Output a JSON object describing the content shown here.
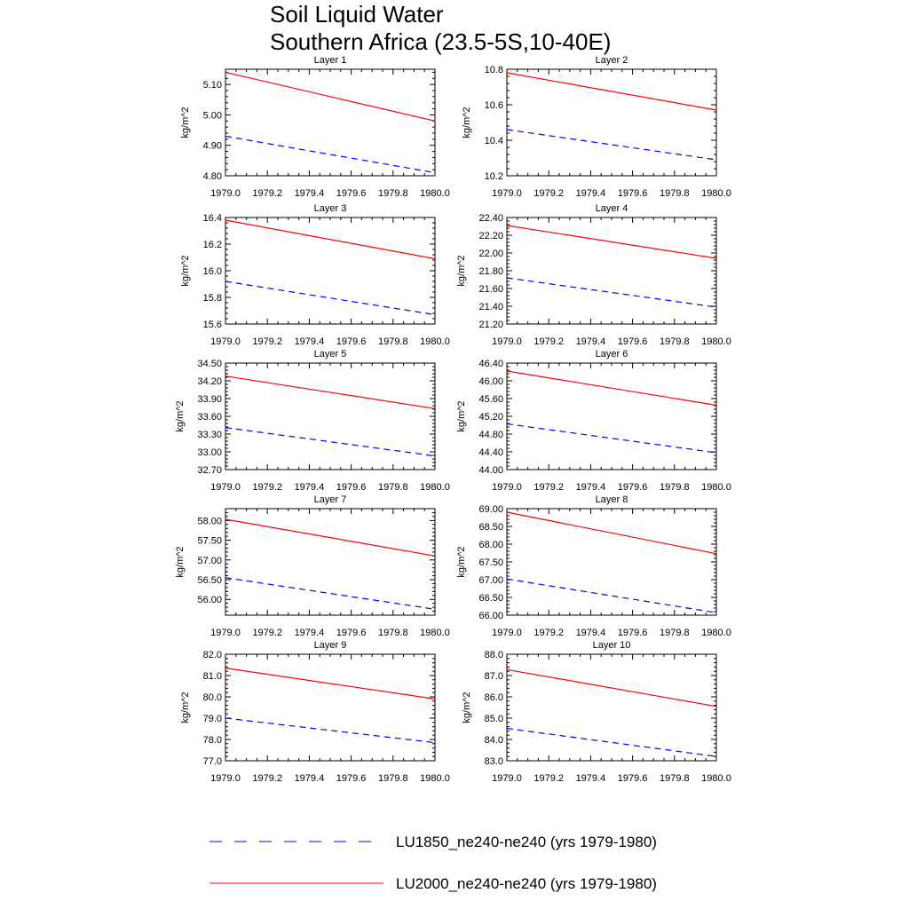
{
  "title_lines": [
    "Soil Liquid Water",
    "Southern Africa (23.5-5S,10-40E)"
  ],
  "legend": [
    {
      "label": "LU1850_ne240-ne240 (yrs 1979-1980)",
      "color": "#0000ff",
      "dash": "dashed"
    },
    {
      "label": "LU2000_ne240-ne240 (yrs 1979-1980)",
      "color": "#ff0000",
      "dash": "solid"
    }
  ],
  "chart_data": [
    {
      "type": "line",
      "title": "Layer 1",
      "ylabel": "kg/m^2",
      "xlim": [
        1979.0,
        1980.0
      ],
      "ylim": [
        4.8,
        5.15
      ],
      "xticks": [
        "1979.0",
        "1979.2",
        "1979.4",
        "1979.6",
        "1979.8",
        "1980.0"
      ],
      "yticks": [
        "4.80",
        "4.90",
        "5.00",
        "5.10"
      ],
      "x": [
        1979.0,
        1980.0
      ],
      "series": [
        {
          "values": [
            4.93,
            4.81
          ]
        },
        {
          "values": [
            5.14,
            4.98
          ]
        }
      ]
    },
    {
      "type": "line",
      "title": "Layer 2",
      "ylabel": "kg/m^2",
      "xlim": [
        1979.0,
        1980.0
      ],
      "ylim": [
        10.2,
        10.8
      ],
      "xticks": [
        "1979.0",
        "1979.2",
        "1979.4",
        "1979.6",
        "1979.8",
        "1980.0"
      ],
      "yticks": [
        "10.2",
        "10.4",
        "10.6",
        "10.8"
      ],
      "x": [
        1979.0,
        1980.0
      ],
      "series": [
        {
          "values": [
            10.46,
            10.29
          ]
        },
        {
          "values": [
            10.78,
            10.57
          ]
        }
      ]
    },
    {
      "type": "line",
      "title": "Layer 3",
      "ylabel": "kg/m^2",
      "xlim": [
        1979.0,
        1980.0
      ],
      "ylim": [
        15.6,
        16.4
      ],
      "xticks": [
        "1979.0",
        "1979.2",
        "1979.4",
        "1979.6",
        "1979.8",
        "1980.0"
      ],
      "yticks": [
        "15.6",
        "15.8",
        "16.0",
        "16.2",
        "16.4"
      ],
      "x": [
        1979.0,
        1980.0
      ],
      "series": [
        {
          "values": [
            15.92,
            15.67
          ]
        },
        {
          "values": [
            16.38,
            16.09
          ]
        }
      ]
    },
    {
      "type": "line",
      "title": "Layer 4",
      "ylabel": "kg/m^2",
      "xlim": [
        1979.0,
        1980.0
      ],
      "ylim": [
        21.2,
        22.4
      ],
      "xticks": [
        "1979.0",
        "1979.2",
        "1979.4",
        "1979.6",
        "1979.8",
        "1980.0"
      ],
      "yticks": [
        "21.20",
        "21.40",
        "21.60",
        "21.80",
        "22.00",
        "22.20",
        "22.40"
      ],
      "x": [
        1979.0,
        1980.0
      ],
      "series": [
        {
          "values": [
            21.72,
            21.39
          ]
        },
        {
          "values": [
            22.31,
            21.94
          ]
        }
      ]
    },
    {
      "type": "line",
      "title": "Layer 5",
      "ylabel": "kg/m^2",
      "xlim": [
        1979.0,
        1980.0
      ],
      "ylim": [
        32.7,
        34.5
      ],
      "xticks": [
        "1979.0",
        "1979.2",
        "1979.4",
        "1979.6",
        "1979.8",
        "1980.0"
      ],
      "yticks": [
        "32.70",
        "33.00",
        "33.30",
        "33.60",
        "33.90",
        "34.20",
        "34.50"
      ],
      "x": [
        1979.0,
        1980.0
      ],
      "series": [
        {
          "values": [
            33.41,
            32.93
          ]
        },
        {
          "values": [
            34.28,
            33.73
          ]
        }
      ]
    },
    {
      "type": "line",
      "title": "Layer 6",
      "ylabel": "kg/m^2",
      "xlim": [
        1979.0,
        1980.0
      ],
      "ylim": [
        44.0,
        46.4
      ],
      "xticks": [
        "1979.0",
        "1979.2",
        "1979.4",
        "1979.6",
        "1979.8",
        "1980.0"
      ],
      "yticks": [
        "44.00",
        "44.40",
        "44.80",
        "45.20",
        "45.60",
        "46.00",
        "46.40"
      ],
      "x": [
        1979.0,
        1980.0
      ],
      "series": [
        {
          "values": [
            45.03,
            44.38
          ]
        },
        {
          "values": [
            46.22,
            45.45
          ]
        }
      ]
    },
    {
      "type": "line",
      "title": "Layer 7",
      "ylabel": "kg/m^2",
      "xlim": [
        1979.0,
        1980.0
      ],
      "ylim": [
        55.6,
        58.3
      ],
      "xticks": [
        "1979.0",
        "1979.2",
        "1979.4",
        "1979.6",
        "1979.8",
        "1980.0"
      ],
      "yticks": [
        "56.00",
        "56.50",
        "57.00",
        "57.50",
        "58.00"
      ],
      "x": [
        1979.0,
        1980.0
      ],
      "series": [
        {
          "values": [
            56.55,
            55.75
          ]
        },
        {
          "values": [
            58.03,
            57.1
          ]
        }
      ]
    },
    {
      "type": "line",
      "title": "Layer 8",
      "ylabel": "kg/m^2",
      "xlim": [
        1979.0,
        1980.0
      ],
      "ylim": [
        66.0,
        69.0
      ],
      "xticks": [
        "1979.0",
        "1979.2",
        "1979.4",
        "1979.6",
        "1979.8",
        "1980.0"
      ],
      "yticks": [
        "66.00",
        "66.50",
        "67.00",
        "67.50",
        "68.00",
        "68.50",
        "69.00"
      ],
      "x": [
        1979.0,
        1980.0
      ],
      "series": [
        {
          "values": [
            67.02,
            66.07
          ]
        },
        {
          "values": [
            68.9,
            67.73
          ]
        }
      ]
    },
    {
      "type": "line",
      "title": "Layer 9",
      "ylabel": "kg/m^2",
      "xlim": [
        1979.0,
        1980.0
      ],
      "ylim": [
        77.0,
        82.0
      ],
      "xticks": [
        "1979.0",
        "1979.2",
        "1979.4",
        "1979.6",
        "1979.8",
        "1980.0"
      ],
      "yticks": [
        "77.0",
        "78.0",
        "79.0",
        "80.0",
        "81.0",
        "82.0"
      ],
      "x": [
        1979.0,
        1980.0
      ],
      "series": [
        {
          "values": [
            79.0,
            77.85
          ]
        },
        {
          "values": [
            81.35,
            79.9
          ]
        }
      ]
    },
    {
      "type": "line",
      "title": "Layer 10",
      "ylabel": "kg/m^2",
      "xlim": [
        1979.0,
        1980.0
      ],
      "ylim": [
        83.0,
        88.0
      ],
      "xticks": [
        "1979.0",
        "1979.2",
        "1979.4",
        "1979.6",
        "1979.8",
        "1980.0"
      ],
      "yticks": [
        "83.0",
        "84.0",
        "85.0",
        "86.0",
        "87.0",
        "88.0"
      ],
      "x": [
        1979.0,
        1980.0
      ],
      "series": [
        {
          "values": [
            84.52,
            83.2
          ]
        },
        {
          "values": [
            87.28,
            85.55
          ]
        }
      ]
    }
  ]
}
